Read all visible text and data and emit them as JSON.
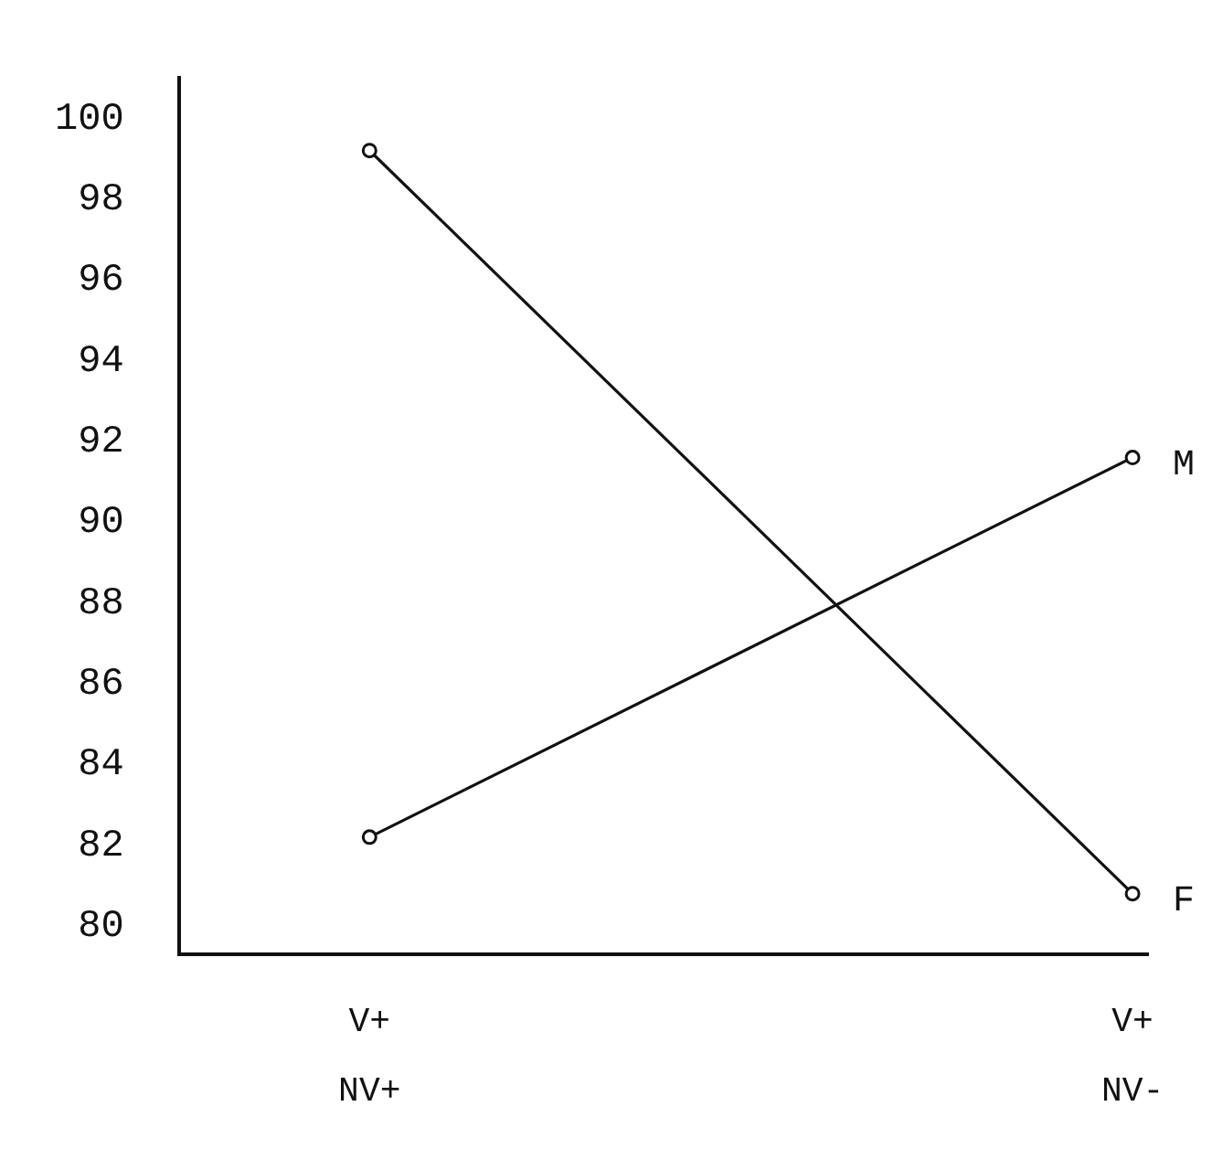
{
  "chart_data": {
    "type": "line",
    "categories": [
      "V+\nNV+",
      "V+\nNV-"
    ],
    "series": [
      {
        "name": "M",
        "color": "#111111",
        "values": [
          82.2,
          91.6
        ]
      },
      {
        "name": "F",
        "color": "#111111",
        "values": [
          99.2,
          80.8
        ]
      }
    ],
    "ylim": [
      79.3,
      101
    ],
    "yticks": [
      80,
      82,
      84,
      86,
      88,
      90,
      92,
      94,
      96,
      98,
      100
    ],
    "grid": false,
    "legend": false,
    "marker": "circle",
    "line_style": "solid"
  }
}
